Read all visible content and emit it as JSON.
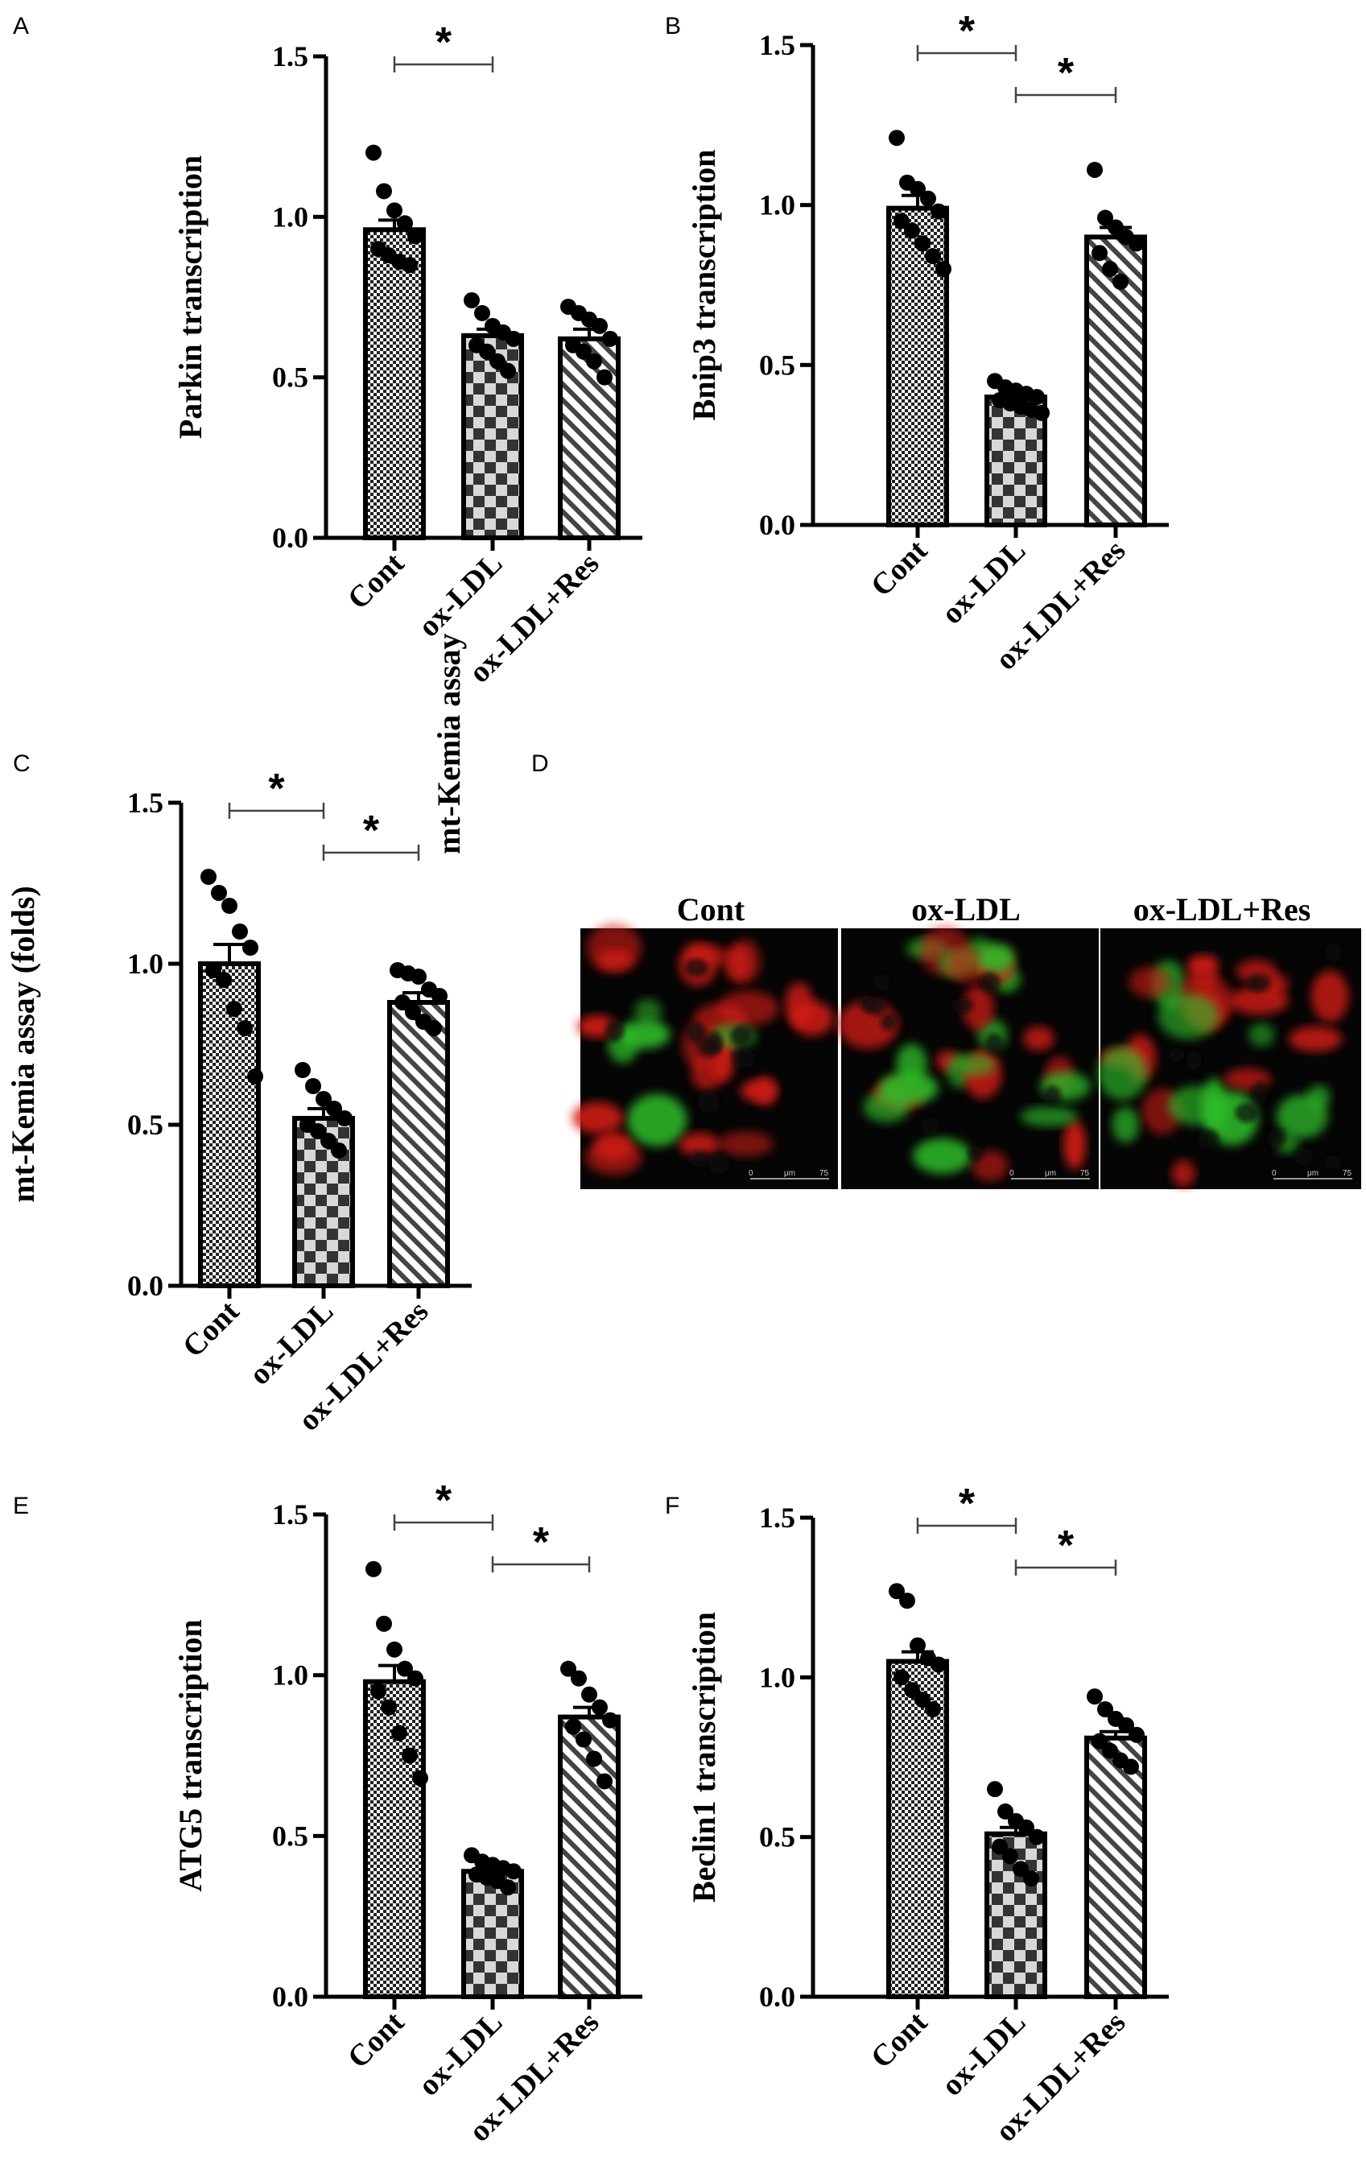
{
  "charts": [
    {
      "letter": "A",
      "type": "bar",
      "ylabel": "Parkin transcription",
      "categories": [
        "Cont",
        "ox-LDL",
        "ox-LDL+Res"
      ],
      "means": [
        0.96,
        0.63,
        0.62
      ],
      "sem": [
        0.03,
        0.02,
        0.03
      ],
      "points": [
        [
          1.2,
          1.08,
          1.02,
          0.98,
          0.94,
          0.9,
          0.88,
          0.86,
          0.85
        ],
        [
          0.74,
          0.7,
          0.66,
          0.64,
          0.62,
          0.6,
          0.58,
          0.55,
          0.52
        ],
        [
          0.72,
          0.7,
          0.68,
          0.66,
          0.62,
          0.6,
          0.58,
          0.55,
          0.5
        ]
      ],
      "ylim": [
        0,
        1.5
      ],
      "yticks": [
        "0.0",
        "0.5",
        "1.0",
        "1.5"
      ],
      "significance": [
        {
          "from": 0,
          "to": 1,
          "label": "*"
        }
      ]
    },
    {
      "letter": "B",
      "type": "bar",
      "ylabel": "Bnip3 transcription",
      "categories": [
        "Cont",
        "ox-LDL",
        "ox-LDL+Res"
      ],
      "means": [
        0.99,
        0.4,
        0.9
      ],
      "sem": [
        0.04,
        0.01,
        0.03
      ],
      "points": [
        [
          1.21,
          1.07,
          1.05,
          1.02,
          0.98,
          0.95,
          0.92,
          0.88,
          0.84,
          0.8
        ],
        [
          0.45,
          0.43,
          0.42,
          0.41,
          0.4,
          0.39,
          0.38,
          0.37,
          0.36,
          0.35
        ],
        [
          1.11,
          0.96,
          0.93,
          0.9,
          0.88,
          0.85,
          0.8,
          0.76
        ]
      ],
      "ylim": [
        0,
        1.5
      ],
      "yticks": [
        "0.0",
        "0.5",
        "1.0",
        "1.5"
      ],
      "significance": [
        {
          "from": 0,
          "to": 1,
          "label": "*"
        },
        {
          "from": 1,
          "to": 2,
          "label": "*"
        }
      ]
    },
    {
      "letter": "C",
      "type": "bar",
      "ylabel": "mt-Kemia assay (folds)",
      "categories": [
        "Cont",
        "ox-LDL",
        "ox-LDL+Res"
      ],
      "means": [
        1.0,
        0.52,
        0.88
      ],
      "sem": [
        0.06,
        0.03,
        0.03
      ],
      "points": [
        [
          1.27,
          1.22,
          1.18,
          1.1,
          1.05,
          0.98,
          0.95,
          0.86,
          0.8,
          0.65
        ],
        [
          0.67,
          0.62,
          0.58,
          0.55,
          0.52,
          0.5,
          0.48,
          0.45,
          0.42
        ],
        [
          0.98,
          0.97,
          0.96,
          0.92,
          0.9,
          0.88,
          0.85,
          0.82,
          0.8
        ]
      ],
      "ylim": [
        0,
        1.5
      ],
      "yticks": [
        "0.0",
        "0.5",
        "1.0",
        "1.5"
      ],
      "significance": [
        {
          "from": 0,
          "to": 1,
          "label": "*"
        },
        {
          "from": 1,
          "to": 2,
          "label": "*"
        }
      ]
    },
    {
      "letter": "E",
      "type": "bar",
      "ylabel": "ATG5 transcription",
      "categories": [
        "Cont",
        "ox-LDL",
        "ox-LDL+Res"
      ],
      "means": [
        0.98,
        0.39,
        0.87
      ],
      "sem": [
        0.05,
        0.01,
        0.03
      ],
      "points": [
        [
          1.33,
          1.16,
          1.08,
          1.02,
          0.99,
          0.95,
          0.9,
          0.82,
          0.75,
          0.68
        ],
        [
          0.44,
          0.42,
          0.41,
          0.4,
          0.39,
          0.38,
          0.37,
          0.36,
          0.34
        ],
        [
          1.02,
          0.99,
          0.94,
          0.9,
          0.86,
          0.84,
          0.8,
          0.74,
          0.67
        ]
      ],
      "ylim": [
        0,
        1.5
      ],
      "yticks": [
        "0.0",
        "0.5",
        "1.0",
        "1.5"
      ],
      "significance": [
        {
          "from": 0,
          "to": 1,
          "label": "*"
        },
        {
          "from": 1,
          "to": 2,
          "label": "*"
        }
      ]
    },
    {
      "letter": "F",
      "type": "bar",
      "ylabel": "Beclin1 transcription",
      "categories": [
        "Cont",
        "ox-LDL",
        "ox-LDL+Res"
      ],
      "means": [
        1.05,
        0.51,
        0.81
      ],
      "sem": [
        0.03,
        0.02,
        0.02
      ],
      "points": [
        [
          1.27,
          1.24,
          1.1,
          1.06,
          1.04,
          1.0,
          0.96,
          0.93,
          0.9
        ],
        [
          0.65,
          0.58,
          0.55,
          0.53,
          0.5,
          0.47,
          0.44,
          0.4,
          0.37
        ],
        [
          0.94,
          0.9,
          0.87,
          0.85,
          0.82,
          0.8,
          0.77,
          0.74,
          0.72
        ]
      ],
      "ylim": [
        0,
        1.5
      ],
      "yticks": [
        "0.0",
        "0.5",
        "1.0",
        "1.5"
      ],
      "significance": [
        {
          "from": 0,
          "to": 1,
          "label": "*"
        },
        {
          "from": 1,
          "to": 2,
          "label": "*"
        }
      ]
    }
  ],
  "microscopy": {
    "letter": "D",
    "ylabel": "mt-Kemia assay",
    "panels": [
      "Cont",
      "ox-LDL",
      "ox-LDL+Res"
    ],
    "scale_bar": {
      "start": "0",
      "unit": "μm",
      "end": "75"
    },
    "colors": {
      "red": "#d41a14",
      "green": "#2dbd2a",
      "background": "#050505"
    }
  },
  "colors": {
    "bar_edge": "#000000",
    "background": "#ffffff"
  }
}
